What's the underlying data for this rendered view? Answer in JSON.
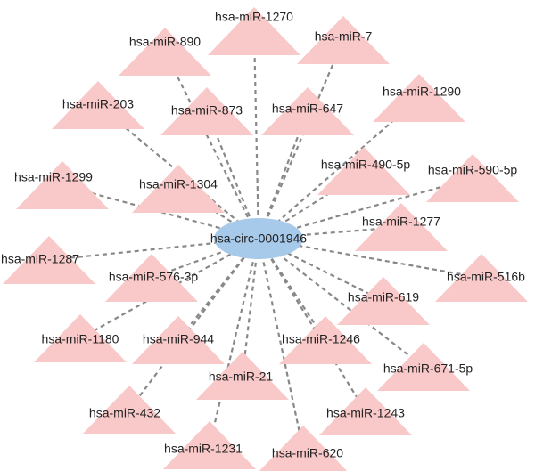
{
  "hub": {
    "label": "hsa-circ-0001946"
  },
  "targets": [
    {
      "label": "hsa-miR-1270"
    },
    {
      "label": "hsa-miR-890"
    },
    {
      "label": "hsa-miR-7"
    },
    {
      "label": "hsa-miR-203"
    },
    {
      "label": "hsa-miR-873"
    },
    {
      "label": "hsa-miR-647"
    },
    {
      "label": "hsa-miR-1290"
    },
    {
      "label": "hsa-miR-1299"
    },
    {
      "label": "hsa-miR-1304"
    },
    {
      "label": "hsa-miR-490-5p"
    },
    {
      "label": "hsa-miR-590-5p"
    },
    {
      "label": "hsa-miR-1277"
    },
    {
      "label": "hsa-miR-1287"
    },
    {
      "label": "hsa-miR-576-3p"
    },
    {
      "label": "hsa-miR-516b"
    },
    {
      "label": "hsa-miR-619"
    },
    {
      "label": "hsa-miR-1180"
    },
    {
      "label": "hsa-miR-944"
    },
    {
      "label": "hsa-miR-1246"
    },
    {
      "label": "hsa-miR-671-5p"
    },
    {
      "label": "hsa-miR-21"
    },
    {
      "label": "hsa-miR-432"
    },
    {
      "label": "hsa-miR-1243"
    },
    {
      "label": "hsa-miR-1231"
    },
    {
      "label": "hsa-miR-620"
    }
  ]
}
